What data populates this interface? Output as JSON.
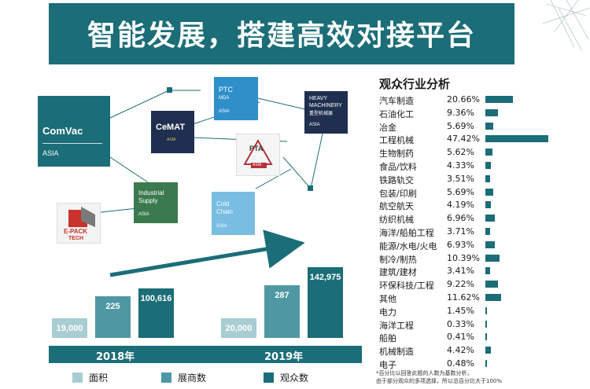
{
  "banner": {
    "title": "智能发展，搭建高效对接平台"
  },
  "nodes": {
    "comvac": {
      "name": "ComVac",
      "tag": "ASIA"
    },
    "cemat": {
      "name": "CeMAT",
      "tag": "ASIA"
    },
    "ptc": {
      "name": "PTC",
      "sub": "MDA",
      "tag": "ASIA"
    },
    "heavy": {
      "name_line1": "HEAVY",
      "name_line2": "MACHINERY",
      "name_cn": "重型机械展",
      "tag": "ASIA"
    },
    "industrial": {
      "name_line1": "Industrial",
      "name_line2": "Supply",
      "tag": "ASIA"
    },
    "epack": {
      "name_line1": "E-PACK",
      "name_line2": "TECH"
    },
    "coldchain": {
      "name_line1": "Cold",
      "name_line2": "Chain",
      "tag": "ASIA"
    },
    "pta": {
      "name": "PTA",
      "tag": "ASIA"
    }
  },
  "colors": {
    "dark_teal": "#1b6d77",
    "mid_teal": "#4f98a3",
    "light_teal": "#a8cdd3",
    "ptc_blue": "#2f8fc9",
    "navy": "#1f2f4f",
    "green": "#3a7a4e",
    "cold_blue": "#79bde2"
  },
  "chart_data": [
    {
      "type": "bar",
      "categories": [
        "2018年",
        "2019年"
      ],
      "series": [
        {
          "name": "面积",
          "values": [
            19000,
            20000
          ],
          "labels": [
            "19,000",
            "20,000"
          ],
          "color": "#a8cdd3"
        },
        {
          "name": "展商数",
          "values": [
            225,
            287
          ],
          "labels": [
            "225",
            "287"
          ],
          "color": "#4f98a3"
        },
        {
          "name": "观众数",
          "values": [
            100616,
            142975
          ],
          "labels": [
            "100,616",
            "142,975"
          ],
          "color": "#1b6d77"
        }
      ],
      "legend": "bottom"
    },
    {
      "type": "bar",
      "title": "观众行业分析",
      "orientation": "horizontal",
      "categories": [
        "汽车制造",
        "石油化工",
        "冶金",
        "工程机械",
        "生物制药",
        "食品/饮料",
        "铁路轨交",
        "包装/印刷",
        "航空航天",
        "纺织机械",
        "海洋/船舶工程",
        "能源/水电/火电",
        "制冷/制热",
        "建筑/建材",
        "环保科技/工程",
        "其他",
        "电力",
        "海洋工程",
        "船舶",
        "机械制造",
        "电子"
      ],
      "values": [
        20.66,
        9.36,
        5.69,
        47.42,
        5.62,
        4.33,
        3.51,
        5.69,
        4.19,
        6.96,
        3.71,
        6.93,
        10.39,
        3.41,
        9.22,
        11.62,
        1.45,
        0.33,
        0.41,
        4.42,
        0.48
      ],
      "labels": [
        "20.66%",
        "9.36%",
        "5.69%",
        "47.42%",
        "5.62%",
        "4.33%",
        "3.51%",
        "5.69%",
        "4.19%",
        "6.96%",
        "3.71%",
        "6.93%",
        "10.39%",
        "3.41%",
        "9.22%",
        "11.62%",
        "1.45%",
        "0.33%",
        "0.41%",
        "4.42%",
        "0.48%"
      ],
      "unit": "%"
    }
  ],
  "note": {
    "line1": "*百分比以回答此题的人数为基数分析，",
    "line2": "由于部分观众的多项选择，所以总百分比大于100%"
  }
}
